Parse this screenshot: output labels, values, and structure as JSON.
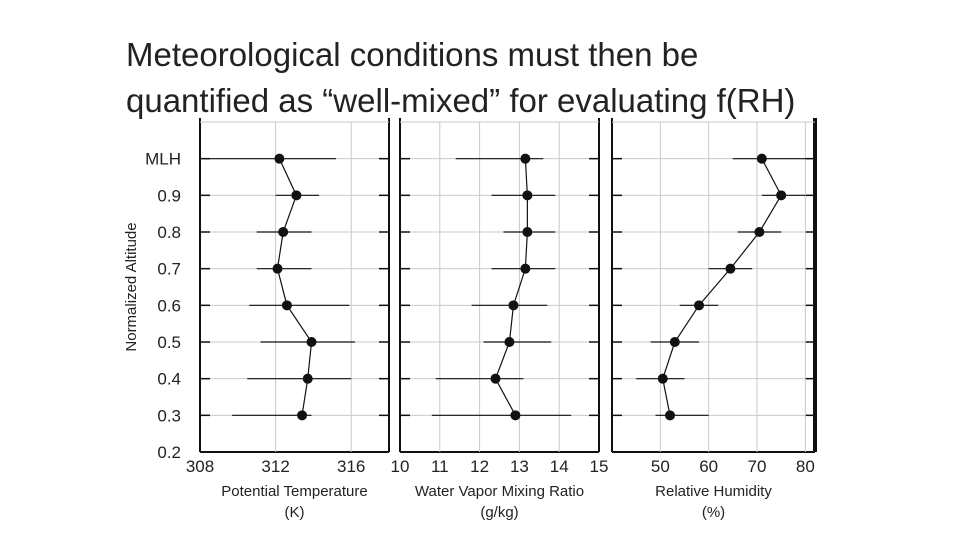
{
  "slide": {
    "title_line1": "Meteorological conditions must then be",
    "title_line2": "quantified as “well-mixed” for evaluating f(RH)"
  },
  "chart_data": {
    "type": "scatter",
    "ylabel": "Normalized Altitude",
    "y_tick_labels": [
      "MLH",
      "0.9",
      "0.8",
      "0.7",
      "0.6",
      "0.5",
      "0.4",
      "0.3",
      "0.2"
    ],
    "y_tick_values": [
      1.0,
      0.9,
      0.8,
      0.7,
      0.6,
      0.5,
      0.4,
      0.3,
      0.2
    ],
    "ylim": [
      0.2,
      1.0
    ],
    "grid": true,
    "panels": [
      {
        "xlabel_line1": "Potential Temperature",
        "xlabel_line2": "(K)",
        "xlim": [
          308,
          318
        ],
        "x_ticks": [
          308,
          312,
          316
        ],
        "x_tick_labels": [
          "308",
          "312",
          "316"
        ],
        "points": [
          {
            "y": 1.0,
            "x": 312.2,
            "xmin": 308.2,
            "xmax": 315.2
          },
          {
            "y": 0.9,
            "x": 313.1,
            "xmin": 312.0,
            "xmax": 314.3
          },
          {
            "y": 0.8,
            "x": 312.4,
            "xmin": 311.0,
            "xmax": 313.9
          },
          {
            "y": 0.7,
            "x": 312.1,
            "xmin": 311.0,
            "xmax": 313.9
          },
          {
            "y": 0.6,
            "x": 312.6,
            "xmin": 310.6,
            "xmax": 315.9
          },
          {
            "y": 0.5,
            "x": 313.9,
            "xmin": 311.2,
            "xmax": 316.2
          },
          {
            "y": 0.4,
            "x": 313.7,
            "xmin": 310.5,
            "xmax": 316.0
          },
          {
            "y": 0.3,
            "x": 313.4,
            "xmin": 309.7,
            "xmax": 313.9
          }
        ]
      },
      {
        "xlabel_line1": "Water Vapor Mixing Ratio",
        "xlabel_line2": "(g/kg)",
        "xlim": [
          10,
          15
        ],
        "x_ticks": [
          10,
          11,
          12,
          13,
          14,
          15
        ],
        "x_tick_labels": [
          "10",
          "11",
          "12",
          "13",
          "14",
          "15"
        ],
        "points": [
          {
            "y": 1.0,
            "x": 13.15,
            "xmin": 11.4,
            "xmax": 13.6
          },
          {
            "y": 0.9,
            "x": 13.2,
            "xmin": 12.3,
            "xmax": 13.9
          },
          {
            "y": 0.8,
            "x": 13.2,
            "xmin": 12.6,
            "xmax": 13.9
          },
          {
            "y": 0.7,
            "x": 13.15,
            "xmin": 12.3,
            "xmax": 13.9
          },
          {
            "y": 0.6,
            "x": 12.85,
            "xmin": 11.8,
            "xmax": 13.7
          },
          {
            "y": 0.5,
            "x": 12.75,
            "xmin": 12.1,
            "xmax": 13.8
          },
          {
            "y": 0.4,
            "x": 12.4,
            "xmin": 10.9,
            "xmax": 13.1
          },
          {
            "y": 0.3,
            "x": 12.9,
            "xmin": 10.8,
            "xmax": 14.3
          }
        ]
      },
      {
        "xlabel_line1": "Relative Humidity",
        "xlabel_line2": "(%)",
        "xlim": [
          40,
          82
        ],
        "x_ticks": [
          50,
          60,
          70,
          80
        ],
        "x_tick_labels": [
          "50",
          "60",
          "70",
          "80"
        ],
        "points": [
          {
            "y": 1.0,
            "x": 71,
            "xmin": 65,
            "xmax": 81
          },
          {
            "y": 0.9,
            "x": 75,
            "xmin": 71,
            "xmax": 80
          },
          {
            "y": 0.8,
            "x": 70.5,
            "xmin": 66,
            "xmax": 75
          },
          {
            "y": 0.7,
            "x": 64.5,
            "xmin": 60,
            "xmax": 69
          },
          {
            "y": 0.6,
            "x": 58,
            "xmin": 54,
            "xmax": 62
          },
          {
            "y": 0.5,
            "x": 53,
            "xmin": 48,
            "xmax": 58
          },
          {
            "y": 0.4,
            "x": 50.5,
            "xmin": 45,
            "xmax": 55
          },
          {
            "y": 0.3,
            "x": 52,
            "xmin": 49,
            "xmax": 60
          }
        ]
      }
    ]
  }
}
